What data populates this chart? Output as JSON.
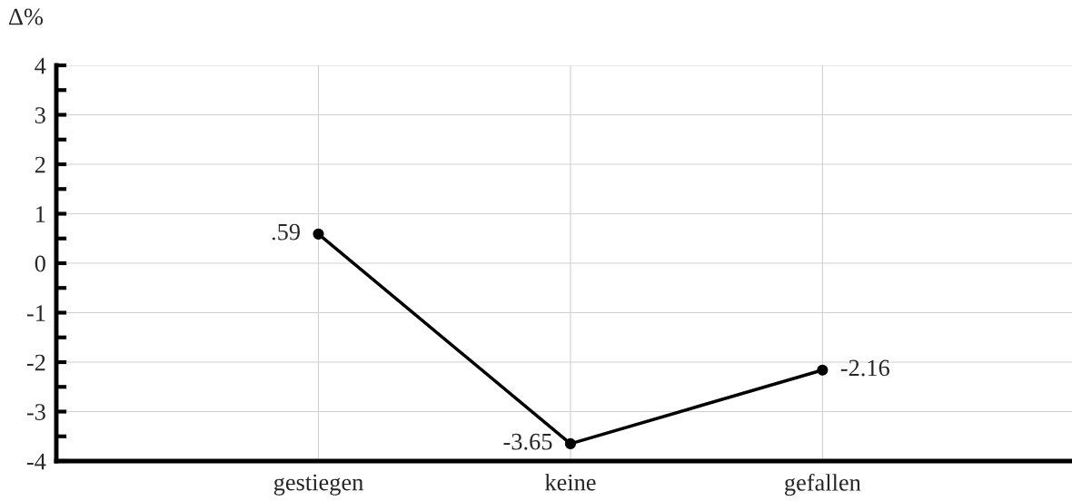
{
  "chart_data": {
    "type": "line",
    "ylabel": "Δ%",
    "categories": [
      "gestiegen",
      "keine",
      "gefallen"
    ],
    "series": [
      {
        "color": "#000000",
        "values": [
          0.59,
          -3.65,
          -2.16
        ],
        "value_labels": [
          ".59",
          "-3.65",
          "-2.16"
        ]
      }
    ],
    "ylim": [
      -4,
      4
    ],
    "yticks": [
      -4,
      {
        "value": -3.5,
        "label": null
      },
      -3,
      {
        "value": -2.5,
        "label": null
      },
      -2,
      {
        "value": -1.5,
        "label": null
      },
      -1,
      {
        "value": -0.5,
        "label": null
      },
      0,
      {
        "value": 0.5,
        "label": null
      },
      1,
      {
        "value": 1.5,
        "label": null
      },
      2,
      {
        "value": 2.5,
        "label": null
      },
      3,
      {
        "value": 3.5,
        "label": null
      },
      4
    ],
    "grid": true,
    "marker": "circle",
    "line_style": "solid",
    "legend": false
  }
}
